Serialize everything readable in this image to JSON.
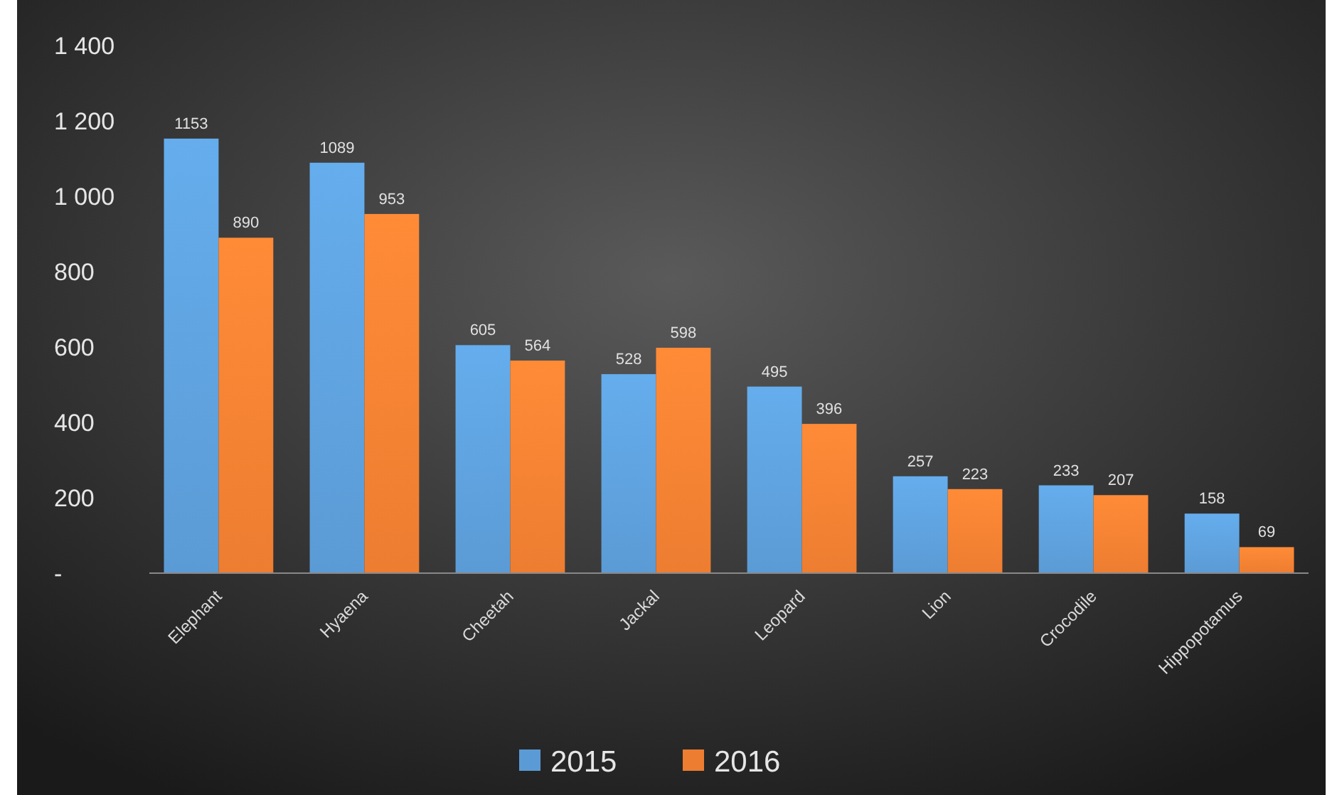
{
  "chart_data": {
    "type": "bar",
    "categories": [
      "Elephant",
      "Hyaena",
      "Cheetah",
      "Jackal",
      "Leopard",
      "Lion",
      "Crocodile",
      "Hippopotamus"
    ],
    "series": [
      {
        "name": "2015",
        "color": "#5b9bd5",
        "values": [
          1153,
          1089,
          605,
          528,
          495,
          257,
          233,
          158
        ]
      },
      {
        "name": "2016",
        "color": "#ed7d31",
        "values": [
          890,
          953,
          564,
          598,
          396,
          223,
          207,
          69
        ]
      }
    ],
    "ylim": [
      0,
      1400
    ],
    "yticks": [
      {
        "value": 0,
        "label": "-"
      },
      200,
      400,
      600,
      800,
      {
        "value": 1000,
        "label": "1 000"
      },
      {
        "value": 1200,
        "label": "1 200"
      },
      {
        "value": 1400,
        "label": "1 400"
      }
    ],
    "data_labels": true,
    "grid": false,
    "legend": "bottom"
  }
}
